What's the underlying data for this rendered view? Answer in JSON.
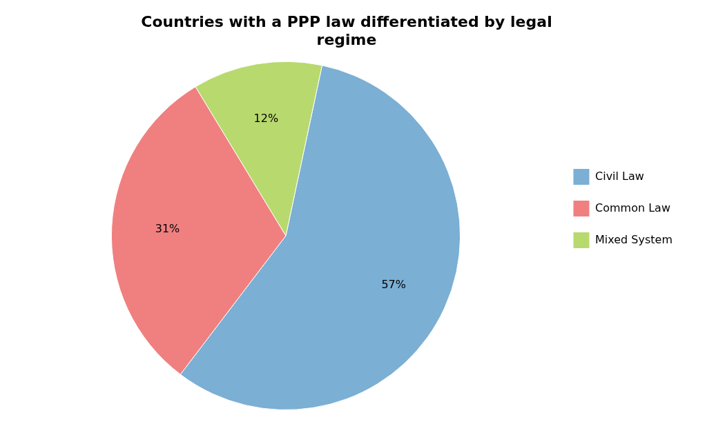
{
  "chart_data": {
    "type": "pie",
    "title": "Countries with a PPP law differentiated by legal\nregime",
    "categories": [
      "Civil Law",
      "Common Law",
      "Mixed System"
    ],
    "values": [
      57,
      31,
      12
    ],
    "value_labels": [
      "57%",
      "31%",
      "12%"
    ],
    "colors": [
      "#7BAFD4",
      "#F08080",
      "#B8D96E"
    ],
    "data_labels": true,
    "legend": "right"
  }
}
